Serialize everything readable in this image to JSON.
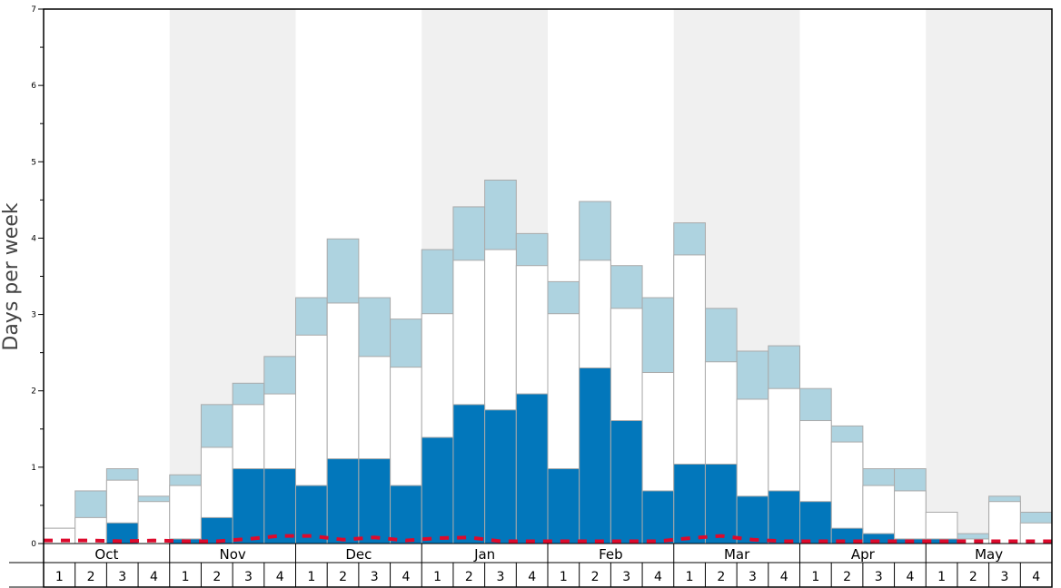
{
  "chart_data": {
    "type": "bar",
    "ylabel": "Days per week",
    "ylim": [
      0,
      7
    ],
    "yticks": [
      "0",
      "1",
      "2",
      "3",
      "4",
      "5",
      "6",
      "7"
    ],
    "months": [
      "Oct",
      "Nov",
      "Dec",
      "Jan",
      "Feb",
      "Mar",
      "Apr",
      "May"
    ],
    "weeks": [
      "1",
      "2",
      "3",
      "4"
    ],
    "colors": {
      "dark": "#0277bb",
      "white": "#ffffff",
      "light": "#aed3e0",
      "band": "#f0f0f0",
      "line": "#dd0a2c",
      "bar_border": "#aaaaaa"
    },
    "series": [
      {
        "values": [
          0.0,
          0.0,
          0.27,
          0.0,
          0.06,
          0.34,
          0.98,
          0.98,
          0.76,
          1.11,
          1.11,
          0.76,
          1.39,
          1.82,
          1.75,
          1.96,
          0.98,
          2.3,
          1.61,
          0.69,
          1.04,
          1.04,
          0.62,
          0.69,
          0.55,
          0.2,
          0.13,
          0.06,
          0.06,
          0.0,
          0.0,
          0.0
        ]
      },
      {
        "values": [
          0.2,
          0.34,
          0.83,
          0.55,
          0.76,
          1.26,
          1.82,
          1.96,
          2.73,
          3.15,
          2.45,
          2.31,
          3.01,
          3.71,
          3.85,
          3.64,
          3.01,
          3.71,
          3.08,
          2.24,
          3.78,
          2.38,
          1.89,
          2.03,
          1.61,
          1.33,
          0.76,
          0.69,
          0.41,
          0.06,
          0.55,
          0.27
        ]
      },
      {
        "values": [
          0.2,
          0.69,
          0.98,
          0.62,
          0.9,
          1.82,
          2.1,
          2.45,
          3.22,
          3.99,
          3.22,
          2.94,
          3.85,
          4.41,
          4.76,
          4.06,
          3.43,
          4.48,
          3.64,
          3.22,
          4.2,
          3.08,
          2.52,
          2.59,
          2.03,
          1.54,
          0.98,
          0.98,
          0.41,
          0.13,
          0.62,
          0.41
        ]
      },
      {
        "values": [
          0.04,
          0.04,
          0.03,
          0.04,
          0.03,
          0.03,
          0.06,
          0.1,
          0.1,
          0.05,
          0.08,
          0.04,
          0.07,
          0.08,
          0.03,
          0.03,
          0.03,
          0.03,
          0.03,
          0.03,
          0.07,
          0.1,
          0.05,
          0.03,
          0.03,
          0.03,
          0.03,
          0.03,
          0.03,
          0.03,
          0.03,
          0.03
        ]
      }
    ]
  }
}
